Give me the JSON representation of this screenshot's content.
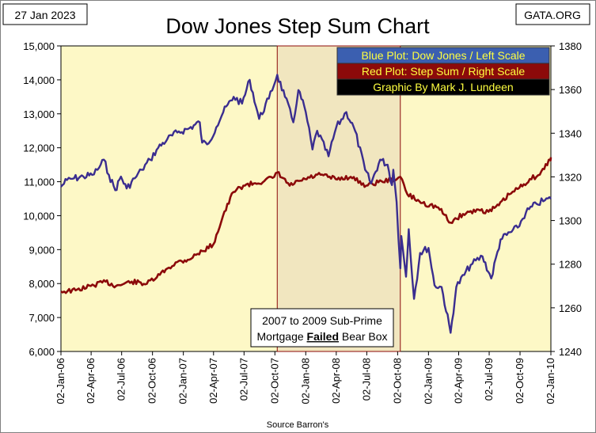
{
  "header": {
    "date": "27 Jan 2023",
    "site": "GATA.ORG",
    "source": "Source Barron's"
  },
  "chart_data": {
    "type": "line",
    "title": "Dow Jones Step Sum Chart",
    "colors": {
      "plot_bg": "#fdf8c6",
      "bear_box": "#f1e6bf",
      "dow": "#3a2d8f",
      "step_sum": "#8c0a0a",
      "legend_blue": "#3b5fb0",
      "legend_red": "#8c0a0a",
      "legend_black": "#000000",
      "legend_text": "#ffff40"
    },
    "legend": [
      {
        "text": "Blue Plot: Dow Jones / Left Scale",
        "color": "legend_blue"
      },
      {
        "text": "Red Plot: Step Sum / Right Scale",
        "color": "legend_red"
      },
      {
        "text": "Graphic By Mark J. Lundeen",
        "color": "legend_black"
      }
    ],
    "legend_position": "top-right",
    "grid": false,
    "annotation": {
      "line1": "2007 to 2009 Sub-Prime",
      "line2_pre": "Mortgage ",
      "line2_bold": "Failed",
      "line2_post": " Bear Box"
    },
    "bear_box_range": [
      "2007-10-09",
      "2008-10-10"
    ],
    "x_axis": {
      "range": [
        "2006-01-02",
        "2010-01-02"
      ],
      "ticks": [
        "02-Jan-06",
        "02-Apr-06",
        "02-Jul-06",
        "02-Oct-06",
        "02-Jan-07",
        "02-Apr-07",
        "02-Jul-07",
        "02-Oct-07",
        "02-Jan-08",
        "02-Apr-08",
        "02-Jul-08",
        "02-Oct-08",
        "02-Jan-09",
        "02-Apr-09",
        "02-Jul-09",
        "02-Oct-09",
        "02-Jan-10"
      ]
    },
    "y_left": {
      "range": [
        6000,
        15000
      ],
      "ticks": [
        "6,000",
        "7,000",
        "8,000",
        "9,000",
        "10,000",
        "11,000",
        "12,000",
        "13,000",
        "14,000",
        "15,000"
      ]
    },
    "y_right": {
      "range": [
        1240,
        1380
      ],
      "ticks": [
        "1240",
        "1260",
        "1280",
        "1300",
        "1320",
        "1340",
        "1360",
        "1380"
      ]
    },
    "series": [
      {
        "name": "Dow Jones",
        "axis": "left",
        "points": [
          [
            "2006-01-02",
            10850
          ],
          [
            "2006-01-20",
            11050
          ],
          [
            "2006-02-10",
            11100
          ],
          [
            "2006-03-10",
            11150
          ],
          [
            "2006-04-05",
            11200
          ],
          [
            "2006-04-21",
            11350
          ],
          [
            "2006-05-10",
            11650
          ],
          [
            "2006-05-25",
            11200
          ],
          [
            "2006-06-13",
            10750
          ],
          [
            "2006-06-30",
            11150
          ],
          [
            "2006-07-17",
            10800
          ],
          [
            "2006-08-10",
            11100
          ],
          [
            "2006-08-31",
            11350
          ],
          [
            "2006-09-25",
            11650
          ],
          [
            "2006-10-19",
            12000
          ],
          [
            "2006-11-15",
            12250
          ],
          [
            "2006-12-15",
            12450
          ],
          [
            "2007-01-15",
            12550
          ],
          [
            "2007-02-20",
            12750
          ],
          [
            "2007-02-27",
            12150
          ],
          [
            "2007-03-14",
            12100
          ],
          [
            "2007-04-10",
            12600
          ],
          [
            "2007-05-01",
            13050
          ],
          [
            "2007-06-01",
            13500
          ],
          [
            "2007-06-26",
            13300
          ],
          [
            "2007-07-19",
            14000
          ],
          [
            "2007-08-16",
            12850
          ],
          [
            "2007-09-14",
            13450
          ],
          [
            "2007-10-09",
            14150
          ],
          [
            "2007-11-01",
            13500
          ],
          [
            "2007-11-26",
            12750
          ],
          [
            "2007-12-11",
            13700
          ],
          [
            "2008-01-02",
            13050
          ],
          [
            "2008-01-22",
            11950
          ],
          [
            "2008-02-05",
            12500
          ],
          [
            "2008-03-10",
            11750
          ],
          [
            "2008-04-02",
            12600
          ],
          [
            "2008-05-02",
            13050
          ],
          [
            "2008-05-28",
            12500
          ],
          [
            "2008-06-27",
            11350
          ],
          [
            "2008-07-15",
            10950
          ],
          [
            "2008-08-11",
            11650
          ],
          [
            "2008-09-02",
            11500
          ],
          [
            "2008-09-15",
            10900
          ],
          [
            "2008-09-19",
            11350
          ],
          [
            "2008-09-29",
            10400
          ],
          [
            "2008-10-10",
            8450
          ],
          [
            "2008-10-13",
            9400
          ],
          [
            "2008-10-27",
            8200
          ],
          [
            "2008-11-04",
            9600
          ],
          [
            "2008-11-20",
            7550
          ],
          [
            "2008-12-08",
            8900
          ],
          [
            "2009-01-02",
            9050
          ],
          [
            "2009-01-20",
            7950
          ],
          [
            "2009-02-10",
            7900
          ],
          [
            "2009-03-09",
            6550
          ],
          [
            "2009-03-26",
            7900
          ],
          [
            "2009-05-08",
            8550
          ],
          [
            "2009-06-12",
            8800
          ],
          [
            "2009-07-08",
            8150
          ],
          [
            "2009-08-05",
            9300
          ],
          [
            "2009-09-25",
            9650
          ],
          [
            "2009-10-20",
            10100
          ],
          [
            "2009-11-20",
            10350
          ],
          [
            "2009-12-15",
            10450
          ],
          [
            "2010-01-02",
            10500
          ]
        ]
      },
      {
        "name": "Step Sum",
        "axis": "right",
        "points": [
          [
            "2006-01-02",
            1267.5
          ],
          [
            "2006-02-15",
            1268
          ],
          [
            "2006-04-01",
            1270
          ],
          [
            "2006-05-15",
            1272
          ],
          [
            "2006-06-15",
            1270
          ],
          [
            "2006-08-01",
            1272
          ],
          [
            "2006-09-15",
            1271
          ],
          [
            "2006-10-15",
            1274
          ],
          [
            "2006-11-15",
            1278
          ],
          [
            "2006-12-15",
            1281
          ],
          [
            "2007-01-15",
            1282
          ],
          [
            "2007-02-28",
            1286
          ],
          [
            "2007-04-01",
            1289
          ],
          [
            "2007-04-30",
            1302
          ],
          [
            "2007-05-31",
            1313
          ],
          [
            "2007-06-30",
            1316
          ],
          [
            "2007-07-31",
            1317
          ],
          [
            "2007-08-31",
            1318
          ],
          [
            "2007-09-30",
            1320
          ],
          [
            "2007-10-09",
            1322
          ],
          [
            "2007-11-15",
            1316
          ],
          [
            "2007-12-31",
            1319
          ],
          [
            "2008-02-15",
            1321
          ],
          [
            "2008-03-31",
            1319
          ],
          [
            "2008-05-15",
            1320
          ],
          [
            "2008-06-30",
            1316
          ],
          [
            "2008-08-15",
            1318
          ],
          [
            "2008-09-30",
            1319
          ],
          [
            "2008-10-10",
            1320
          ],
          [
            "2008-10-31",
            1312
          ],
          [
            "2008-12-15",
            1308
          ],
          [
            "2009-01-31",
            1306
          ],
          [
            "2009-03-09",
            1299
          ],
          [
            "2009-04-15",
            1303
          ],
          [
            "2009-05-31",
            1305
          ],
          [
            "2009-06-30",
            1304
          ],
          [
            "2009-07-31",
            1307
          ],
          [
            "2009-08-31",
            1312
          ],
          [
            "2009-09-30",
            1315
          ],
          [
            "2009-10-31",
            1319
          ],
          [
            "2009-11-30",
            1321
          ],
          [
            "2009-12-31",
            1328
          ],
          [
            "2010-01-02",
            1329
          ]
        ]
      }
    ]
  }
}
